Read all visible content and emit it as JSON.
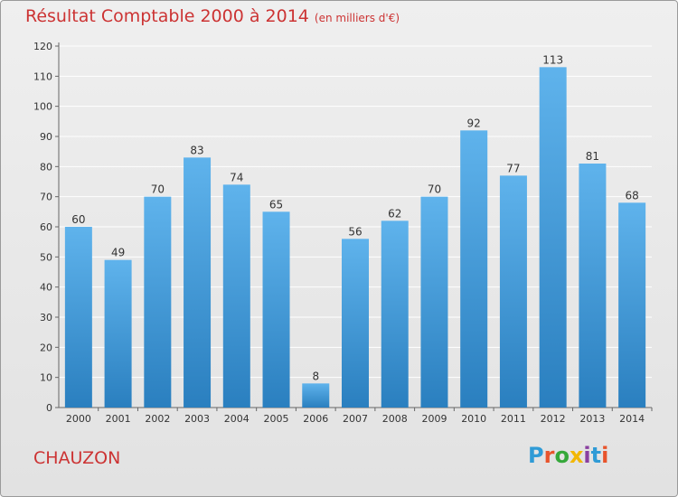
{
  "header": {
    "title": "Résultat Comptable 2000 à 2014",
    "unit": "(en milliers d'€)"
  },
  "footer": {
    "city": "CHAUZON",
    "brand": "Proxiti",
    "brand_colors": [
      "#2f9bd6",
      "#e8542c",
      "#35a83a",
      "#f2b705",
      "#8a3fa0",
      "#2f9bd6",
      "#e8542c"
    ]
  },
  "colors": {
    "bar_top": "#5fb3ec",
    "bar_bottom": "#2a7fbf",
    "grid": "#ffffff",
    "axis_text": "#333333",
    "title": "#cc3333"
  },
  "chart_data": {
    "type": "bar",
    "title": "Résultat Comptable 2000 à 2014",
    "subtitle": "(en milliers d'€)",
    "categories": [
      "2000",
      "2001",
      "2002",
      "2003",
      "2004",
      "2005",
      "2006",
      "2007",
      "2008",
      "2009",
      "2010",
      "2011",
      "2012",
      "2013",
      "2014"
    ],
    "values": [
      60,
      49,
      70,
      83,
      74,
      65,
      8,
      56,
      62,
      70,
      92,
      77,
      113,
      81,
      68
    ],
    "xlabel": "",
    "ylabel": "",
    "ylim": [
      0,
      120
    ],
    "yticks": [
      0,
      10,
      20,
      30,
      40,
      50,
      60,
      70,
      80,
      90,
      100,
      110,
      120
    ],
    "grid": true,
    "legend": "none"
  }
}
